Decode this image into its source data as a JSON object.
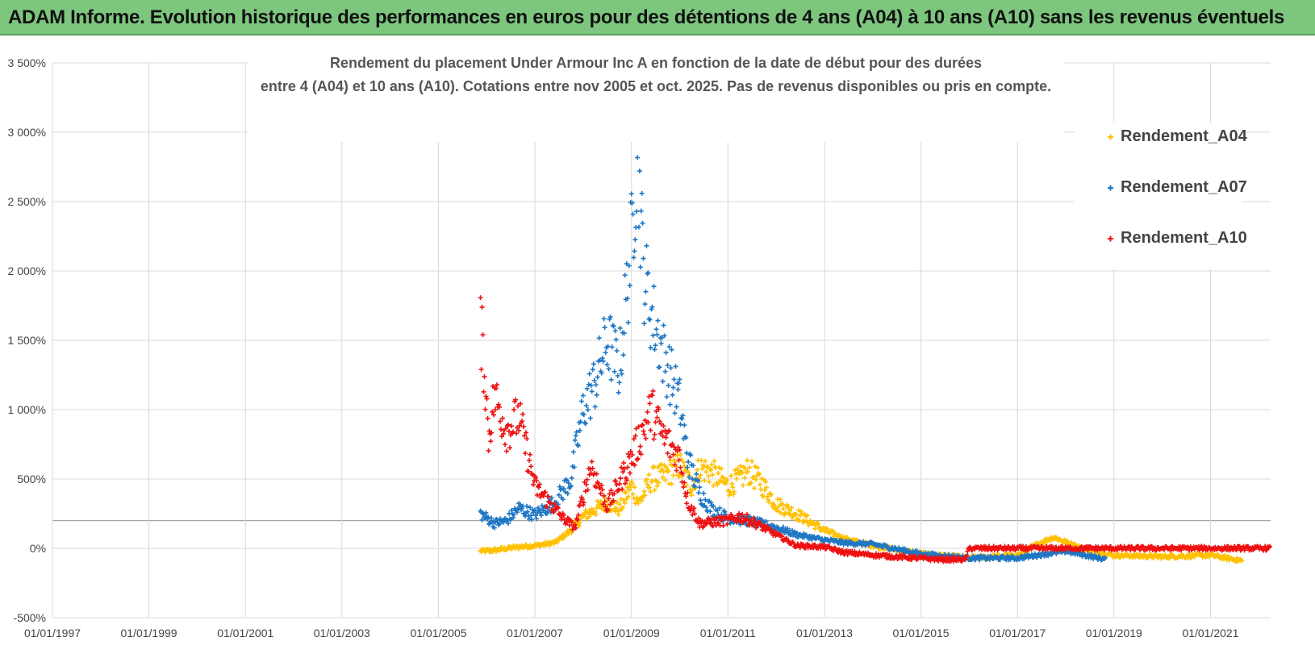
{
  "banner": {
    "title": "ADAM Informe. Evolution historique des performances en euros pour des détentions de 4 ans (A04) à 10 ans (A10) sans les revenus éventuels"
  },
  "chart_data": {
    "type": "scatter",
    "title_line1": "Rendement du placement Under Armour Inc A en fonction de la date de début pour des durées",
    "title_line2": "entre 4 (A04) et 10 ans (A10). Cotations entre nov 2005 et oct. 2025. Pas de revenus disponibles ou pris en compte.",
    "xlabel": "",
    "ylabel": "",
    "x_ticks": [
      "01/01/1997",
      "01/01/1999",
      "01/01/2001",
      "01/01/2003",
      "01/01/2005",
      "01/01/2007",
      "01/01/2009",
      "01/01/2011",
      "01/01/2013",
      "01/01/2015",
      "01/01/2017",
      "01/01/2019",
      "01/01/2021"
    ],
    "y_ticks": [
      "3 500%",
      "3 000%",
      "2 500%",
      "2 000%",
      "1 500%",
      "1 000%",
      "500%",
      "0%",
      "-500%"
    ],
    "xlim": [
      "1997-01-01",
      "2022-04-01"
    ],
    "ylim": [
      -500,
      3500
    ],
    "grid": true,
    "legend_position": "top-right",
    "series": [
      {
        "name": "Rendement_A04",
        "color": "#ffc000",
        "marker": "plus",
        "points": [
          [
            "2005-11-15",
            -20
          ],
          [
            "2006-03-01",
            -15
          ],
          [
            "2006-06-01",
            0
          ],
          [
            "2006-09-01",
            10
          ],
          [
            "2007-01-01",
            20
          ],
          [
            "2007-06-01",
            40
          ],
          [
            "2007-10-01",
            130
          ],
          [
            "2008-01-01",
            230
          ],
          [
            "2008-04-01",
            280
          ],
          [
            "2008-07-01",
            330
          ],
          [
            "2008-10-01",
            280
          ],
          [
            "2009-01-01",
            450
          ],
          [
            "2009-03-01",
            330
          ],
          [
            "2009-06-01",
            500
          ],
          [
            "2009-09-01",
            520
          ],
          [
            "2010-01-01",
            600
          ],
          [
            "2010-04-01",
            450
          ],
          [
            "2010-06-01",
            580
          ],
          [
            "2010-09-01",
            550
          ],
          [
            "2011-01-01",
            450
          ],
          [
            "2011-04-01",
            500
          ],
          [
            "2011-06-01",
            560
          ],
          [
            "2011-09-01",
            480
          ],
          [
            "2012-01-01",
            320
          ],
          [
            "2012-06-01",
            250
          ],
          [
            "2013-01-01",
            130
          ],
          [
            "2013-06-01",
            70
          ],
          [
            "2014-01-01",
            20
          ],
          [
            "2015-01-01",
            -40
          ],
          [
            "2016-01-01",
            -70
          ],
          [
            "2017-01-01",
            -50
          ],
          [
            "2017-06-01",
            30
          ],
          [
            "2017-10-01",
            80
          ],
          [
            "2018-06-01",
            -10
          ],
          [
            "2019-01-01",
            -50
          ],
          [
            "2020-01-01",
            -60
          ],
          [
            "2021-01-01",
            -50
          ],
          [
            "2021-09-01",
            -90
          ]
        ]
      },
      {
        "name": "Rendement_A07",
        "color": "#1f77c4",
        "marker": "plus",
        "points": [
          [
            "2005-11-15",
            250
          ],
          [
            "2006-03-01",
            180
          ],
          [
            "2006-06-01",
            200
          ],
          [
            "2006-09-01",
            290
          ],
          [
            "2007-01-01",
            240
          ],
          [
            "2007-06-01",
            330
          ],
          [
            "2007-10-01",
            500
          ],
          [
            "2008-01-01",
            1000
          ],
          [
            "2008-04-01",
            1200
          ],
          [
            "2008-07-01",
            1500
          ],
          [
            "2008-10-01",
            1300
          ],
          [
            "2009-01-01",
            2200
          ],
          [
            "2009-02-15",
            2900
          ],
          [
            "2009-04-01",
            2000
          ],
          [
            "2009-06-01",
            1700
          ],
          [
            "2009-09-01",
            1400
          ],
          [
            "2010-01-01",
            1050
          ],
          [
            "2010-03-01",
            650
          ],
          [
            "2010-06-01",
            400
          ],
          [
            "2010-09-01",
            280
          ],
          [
            "2011-01-01",
            220
          ],
          [
            "2011-06-01",
            200
          ],
          [
            "2012-01-01",
            150
          ],
          [
            "2012-06-01",
            100
          ],
          [
            "2013-01-01",
            60
          ],
          [
            "2013-06-01",
            40
          ],
          [
            "2014-01-01",
            30
          ],
          [
            "2015-01-01",
            -40
          ],
          [
            "2016-01-01",
            -70
          ],
          [
            "2017-01-01",
            -70
          ],
          [
            "2018-01-01",
            -20
          ],
          [
            "2018-11-01",
            -80
          ]
        ]
      },
      {
        "name": "Rendement_A10",
        "color": "#ee1111",
        "marker": "plus",
        "points": [
          [
            "2005-11-15",
            1600
          ],
          [
            "2005-12-15",
            1300
          ],
          [
            "2006-01-15",
            800
          ],
          [
            "2006-03-01",
            1100
          ],
          [
            "2006-06-01",
            850
          ],
          [
            "2006-09-01",
            950
          ],
          [
            "2007-01-01",
            450
          ],
          [
            "2007-04-01",
            350
          ],
          [
            "2007-08-01",
            220
          ],
          [
            "2007-11-01",
            150
          ],
          [
            "2008-03-01",
            600
          ],
          [
            "2008-07-01",
            300
          ],
          [
            "2009-01-01",
            650
          ],
          [
            "2009-06-01",
            1000
          ],
          [
            "2009-09-01",
            800
          ],
          [
            "2010-01-01",
            650
          ],
          [
            "2010-03-01",
            350
          ],
          [
            "2010-06-01",
            180
          ],
          [
            "2011-01-01",
            200
          ],
          [
            "2011-04-01",
            230
          ],
          [
            "2011-08-01",
            180
          ],
          [
            "2012-01-01",
            100
          ],
          [
            "2012-06-01",
            20
          ],
          [
            "2013-01-01",
            10
          ],
          [
            "2013-06-01",
            -30
          ],
          [
            "2014-06-01",
            -60
          ],
          [
            "2015-06-01",
            -80
          ],
          [
            "2015-12-01",
            -80
          ],
          [
            "2016-01-01",
            0
          ],
          [
            "2018-01-01",
            0
          ],
          [
            "2020-01-01",
            0
          ],
          [
            "2022-04-01",
            0
          ]
        ]
      }
    ]
  }
}
